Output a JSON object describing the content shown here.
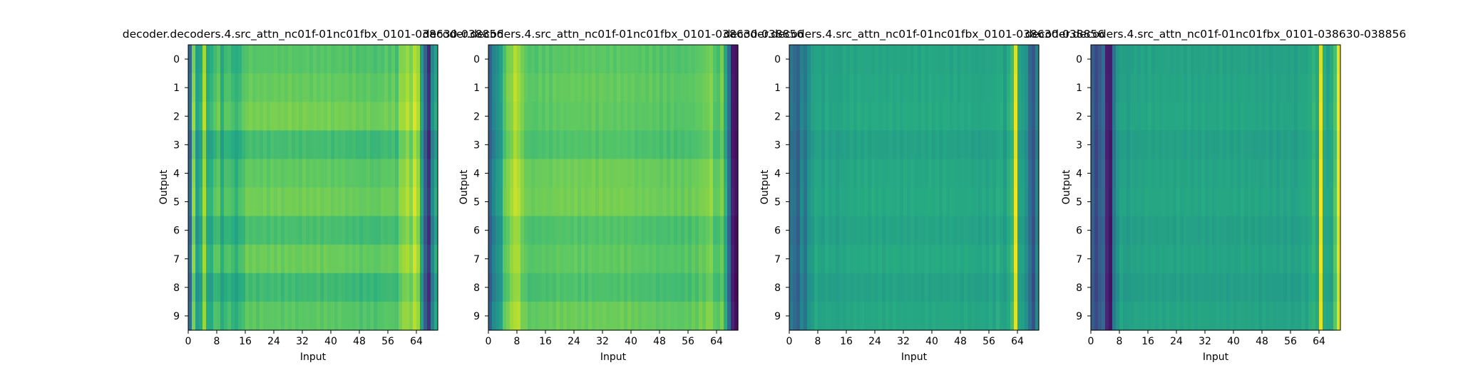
{
  "chart_data": [
    {
      "type": "heatmap",
      "title": "decoder.decoders.4.src_attn_nc01f-01nc01fbx_0101-038630-038856",
      "xlabel": "Input",
      "ylabel": "Output",
      "x_ticks": [
        0,
        8,
        16,
        24,
        32,
        40,
        48,
        56,
        64
      ],
      "y_ticks": [
        0,
        1,
        2,
        3,
        4,
        5,
        6,
        7,
        8,
        9
      ],
      "xlim": [
        0,
        70
      ],
      "ylim": [
        0,
        10
      ],
      "colormap": "viridis",
      "column_profile": [
        0.35,
        0.8,
        0.55,
        0.6,
        0.85,
        0.6,
        0.62,
        0.7,
        0.72,
        0.6,
        0.68,
        0.7,
        0.65,
        0.62,
        0.66,
        0.7,
        0.74,
        0.74,
        0.74,
        0.73,
        0.74,
        0.74,
        0.73,
        0.74,
        0.74,
        0.74,
        0.73,
        0.74,
        0.74,
        0.74,
        0.73,
        0.73,
        0.74,
        0.74,
        0.73,
        0.74,
        0.74,
        0.73,
        0.74,
        0.74,
        0.73,
        0.73,
        0.74,
        0.73,
        0.73,
        0.72,
        0.73,
        0.72,
        0.71,
        0.72,
        0.72,
        0.72,
        0.7,
        0.72,
        0.72,
        0.74,
        0.72,
        0.74,
        0.7,
        0.8,
        0.82,
        0.85,
        0.8,
        0.9,
        0.84,
        0.55,
        0.3,
        0.15,
        0.45,
        0.6
      ],
      "row_profile": [
        0.0,
        0.03,
        0.06,
        -0.04,
        0.02,
        0.05,
        -0.03,
        0.04,
        -0.05,
        0.01
      ]
    },
    {
      "type": "heatmap",
      "title": "decoder.decoders.4.src_attn_nc01f-01nc01fbx_0101-038630-038856",
      "xlabel": "Input",
      "ylabel": "Output",
      "x_ticks": [
        0,
        8,
        16,
        24,
        32,
        40,
        48,
        56,
        64
      ],
      "y_ticks": [
        0,
        1,
        2,
        3,
        4,
        5,
        6,
        7,
        8,
        9
      ],
      "xlim": [
        0,
        70
      ],
      "ylim": [
        0,
        10
      ],
      "colormap": "viridis",
      "column_profile": [
        0.3,
        0.45,
        0.5,
        0.55,
        0.72,
        0.78,
        0.82,
        0.88,
        0.86,
        0.78,
        0.75,
        0.72,
        0.73,
        0.72,
        0.74,
        0.73,
        0.74,
        0.73,
        0.74,
        0.75,
        0.74,
        0.75,
        0.74,
        0.75,
        0.75,
        0.74,
        0.75,
        0.74,
        0.75,
        0.75,
        0.74,
        0.75,
        0.75,
        0.74,
        0.75,
        0.74,
        0.75,
        0.75,
        0.74,
        0.75,
        0.74,
        0.74,
        0.73,
        0.74,
        0.73,
        0.74,
        0.73,
        0.73,
        0.72,
        0.73,
        0.72,
        0.73,
        0.72,
        0.72,
        0.72,
        0.73,
        0.72,
        0.74,
        0.73,
        0.76,
        0.75,
        0.78,
        0.8,
        0.72,
        0.7,
        0.78,
        0.6,
        0.35,
        0.1,
        0.05
      ],
      "row_profile": [
        0.0,
        0.02,
        0.01,
        -0.02,
        0.04,
        0.05,
        -0.02,
        0.01,
        -0.03,
        0.03
      ]
    },
    {
      "type": "heatmap",
      "title": "decoder.decoders.4.src_attn_nc01f-01nc01fbx_0101-038630-038856",
      "xlabel": "Input",
      "ylabel": "Output",
      "x_ticks": [
        0,
        8,
        16,
        24,
        32,
        40,
        48,
        56,
        64
      ],
      "y_ticks": [
        0,
        1,
        2,
        3,
        4,
        5,
        6,
        7,
        8,
        9
      ],
      "xlim": [
        0,
        70
      ],
      "ylim": [
        0,
        10
      ],
      "colormap": "viridis",
      "column_profile": [
        0.4,
        0.35,
        0.3,
        0.45,
        0.38,
        0.5,
        0.55,
        0.6,
        0.58,
        0.56,
        0.6,
        0.58,
        0.58,
        0.57,
        0.58,
        0.59,
        0.59,
        0.6,
        0.59,
        0.6,
        0.6,
        0.6,
        0.59,
        0.6,
        0.6,
        0.6,
        0.59,
        0.6,
        0.6,
        0.6,
        0.6,
        0.59,
        0.6,
        0.6,
        0.6,
        0.6,
        0.59,
        0.6,
        0.6,
        0.6,
        0.6,
        0.6,
        0.59,
        0.6,
        0.6,
        0.59,
        0.6,
        0.59,
        0.59,
        0.6,
        0.59,
        0.59,
        0.58,
        0.58,
        0.59,
        0.58,
        0.6,
        0.58,
        0.62,
        0.6,
        0.55,
        0.62,
        0.68,
        0.95,
        0.58,
        0.55,
        0.5,
        0.35,
        0.25,
        0.45
      ],
      "row_profile": [
        0.0,
        0.01,
        0.02,
        -0.02,
        0.01,
        0.02,
        -0.01,
        0.02,
        -0.02,
        0.01
      ]
    },
    {
      "type": "heatmap",
      "title": "decoder.decoders.4.src_attn_nc01f-01nc01fbx_0101-038630-038856",
      "xlabel": "Input",
      "ylabel": "Output",
      "x_ticks": [
        0,
        8,
        16,
        24,
        32,
        40,
        48,
        56,
        64
      ],
      "y_ticks": [
        0,
        1,
        2,
        3,
        4,
        5,
        6,
        7,
        8,
        9
      ],
      "xlim": [
        0,
        70
      ],
      "ylim": [
        0,
        10
      ],
      "colormap": "viridis",
      "column_profile": [
        0.3,
        0.22,
        0.28,
        0.35,
        0.12,
        0.08,
        0.4,
        0.52,
        0.58,
        0.56,
        0.55,
        0.57,
        0.58,
        0.57,
        0.58,
        0.58,
        0.59,
        0.58,
        0.58,
        0.59,
        0.58,
        0.59,
        0.58,
        0.58,
        0.59,
        0.58,
        0.58,
        0.59,
        0.58,
        0.58,
        0.58,
        0.59,
        0.58,
        0.58,
        0.58,
        0.58,
        0.59,
        0.58,
        0.58,
        0.58,
        0.58,
        0.58,
        0.59,
        0.58,
        0.58,
        0.58,
        0.58,
        0.57,
        0.58,
        0.58,
        0.57,
        0.58,
        0.57,
        0.58,
        0.57,
        0.58,
        0.57,
        0.56,
        0.58,
        0.6,
        0.58,
        0.62,
        0.65,
        0.6,
        0.95,
        0.62,
        0.58,
        0.6,
        0.72,
        0.95
      ],
      "row_profile": [
        0.0,
        0.01,
        0.02,
        -0.01,
        0.01,
        0.02,
        -0.01,
        0.01,
        -0.02,
        0.01
      ]
    }
  ]
}
